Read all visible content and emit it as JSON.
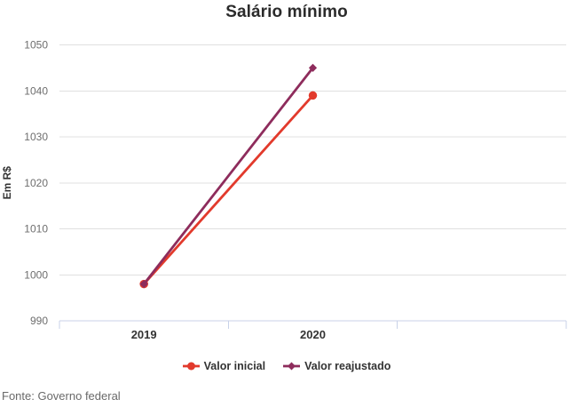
{
  "title": "Salário mínimo",
  "source": "Fonte: Governo federal",
  "colors": {
    "series_red": "#e23a2c",
    "series_purple": "#8e2c5c",
    "gridline": "#e0e0e0",
    "axis": "#c8d2e8",
    "tick_label": "#6e6e6e",
    "axis_label": "#333333",
    "title": "#2b2b2b",
    "source": "#696969",
    "background": "#ffffff"
  },
  "chart_data": {
    "type": "line",
    "title": "Salário mínimo",
    "categories": [
      "2019",
      "2020"
    ],
    "series": [
      {
        "name": "Valor inicial",
        "marker": "circle",
        "color": "#e23a2c",
        "values": [
          998,
          1039
        ]
      },
      {
        "name": "Valor reajustado",
        "marker": "diamond",
        "color": "#8e2c5c",
        "values": [
          998,
          1045
        ]
      }
    ],
    "xlabel": "",
    "ylabel": "Em R$",
    "ylim": [
      990,
      1050
    ],
    "yticks": [
      990,
      1000,
      1010,
      1020,
      1030,
      1040,
      1050
    ],
    "grid": true,
    "legend_position": "bottom",
    "source_note": "Fonte: Governo federal"
  }
}
